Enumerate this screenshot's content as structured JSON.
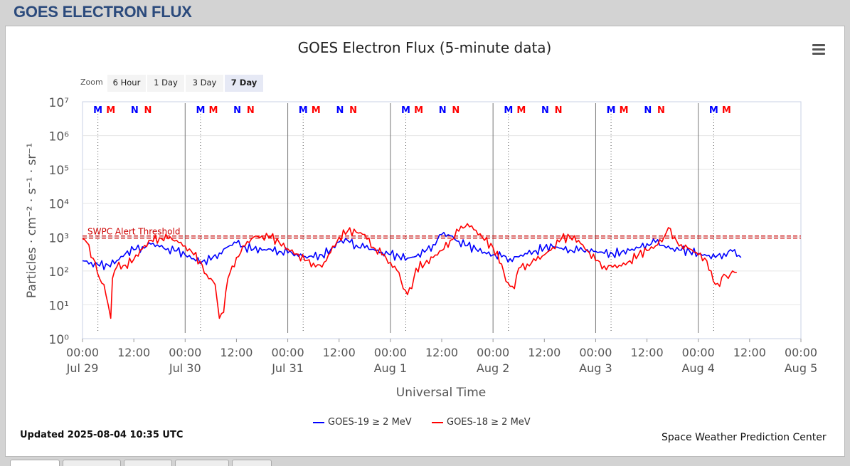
{
  "page": {
    "header": "GOES ELECTRON FLUX"
  },
  "zoom": {
    "label": "Zoom",
    "buttons": [
      "6 Hour",
      "1 Day",
      "3 Day",
      "7 Day"
    ],
    "active": "7 Day"
  },
  "footer": {
    "updated": "Updated 2025-08-04 10:35 UTC",
    "credit": "Space Weather Prediction Center"
  },
  "colors": {
    "header": "#2b4a7c",
    "goes19": "#0000ff",
    "goes18": "#ff0000",
    "threshold": "#cc0000"
  },
  "chart_data": {
    "type": "line",
    "title": "GOES Electron Flux (5-minute data)",
    "xlabel": "Universal Time",
    "ylabel": "Particles · cm⁻² · s⁻¹ · sr⁻¹",
    "y_scale": "log",
    "ylim": [
      1,
      10000000
    ],
    "y_ticks": [
      "10⁰",
      "10¹",
      "10²",
      "10³",
      "10⁴",
      "10⁵",
      "10⁶",
      "10⁷"
    ],
    "x_range_hours": [
      0,
      168
    ],
    "x_tick_labels": [
      [
        "00:00",
        "Jul 29"
      ],
      [
        "12:00",
        ""
      ],
      [
        "00:00",
        "Jul 30"
      ],
      [
        "12:00",
        ""
      ],
      [
        "00:00",
        "Jul 31"
      ],
      [
        "12:00",
        ""
      ],
      [
        "00:00",
        "Aug 1"
      ],
      [
        "12:00",
        ""
      ],
      [
        "00:00",
        "Aug 2"
      ],
      [
        "12:00",
        ""
      ],
      [
        "00:00",
        "Aug 3"
      ],
      [
        "12:00",
        ""
      ],
      [
        "00:00",
        "Aug 4"
      ],
      [
        "12:00",
        ""
      ],
      [
        "00:00",
        "Aug 5"
      ]
    ],
    "threshold": {
      "label": "SWPC Alert Threshold",
      "value": 1000
    },
    "markers": [
      {
        "t": 3.6,
        "label": "M",
        "color": "#0000ff"
      },
      {
        "t": 6.6,
        "label": "M",
        "color": "#ff0000"
      },
      {
        "t": 12.2,
        "label": "N",
        "color": "#0000ff"
      },
      {
        "t": 15.3,
        "label": "N",
        "color": "#ff0000"
      },
      {
        "t": 27.6,
        "label": "M",
        "color": "#0000ff"
      },
      {
        "t": 30.6,
        "label": "M",
        "color": "#ff0000"
      },
      {
        "t": 36.2,
        "label": "N",
        "color": "#0000ff"
      },
      {
        "t": 39.3,
        "label": "N",
        "color": "#ff0000"
      },
      {
        "t": 51.6,
        "label": "M",
        "color": "#0000ff"
      },
      {
        "t": 54.6,
        "label": "M",
        "color": "#ff0000"
      },
      {
        "t": 60.2,
        "label": "N",
        "color": "#0000ff"
      },
      {
        "t": 63.3,
        "label": "N",
        "color": "#ff0000"
      },
      {
        "t": 75.6,
        "label": "M",
        "color": "#0000ff"
      },
      {
        "t": 78.6,
        "label": "M",
        "color": "#ff0000"
      },
      {
        "t": 84.2,
        "label": "N",
        "color": "#0000ff"
      },
      {
        "t": 87.3,
        "label": "N",
        "color": "#ff0000"
      },
      {
        "t": 99.6,
        "label": "M",
        "color": "#0000ff"
      },
      {
        "t": 102.6,
        "label": "M",
        "color": "#ff0000"
      },
      {
        "t": 108.2,
        "label": "N",
        "color": "#0000ff"
      },
      {
        "t": 111.3,
        "label": "N",
        "color": "#ff0000"
      },
      {
        "t": 123.6,
        "label": "M",
        "color": "#0000ff"
      },
      {
        "t": 126.6,
        "label": "M",
        "color": "#ff0000"
      },
      {
        "t": 132.2,
        "label": "N",
        "color": "#0000ff"
      },
      {
        "t": 135.3,
        "label": "N",
        "color": "#ff0000"
      },
      {
        "t": 147.6,
        "label": "M",
        "color": "#0000ff"
      },
      {
        "t": 150.6,
        "label": "M",
        "color": "#ff0000"
      }
    ],
    "series": [
      {
        "name": "GOES-19 ≥ 2 MeV",
        "color": "#0000ff",
        "points": [
          [
            0,
            200
          ],
          [
            2,
            180
          ],
          [
            4,
            140
          ],
          [
            6,
            150
          ],
          [
            8,
            200
          ],
          [
            10,
            320
          ],
          [
            12,
            420
          ],
          [
            14,
            520
          ],
          [
            16,
            620
          ],
          [
            18,
            520
          ],
          [
            20,
            460
          ],
          [
            22,
            390
          ],
          [
            24,
            300
          ],
          [
            26,
            230
          ],
          [
            28,
            190
          ],
          [
            30,
            210
          ],
          [
            32,
            340
          ],
          [
            34,
            520
          ],
          [
            36,
            680
          ],
          [
            38,
            520
          ],
          [
            40,
            440
          ],
          [
            42,
            410
          ],
          [
            44,
            440
          ],
          [
            46,
            380
          ],
          [
            48,
            340
          ],
          [
            50,
            320
          ],
          [
            52,
            270
          ],
          [
            54,
            250
          ],
          [
            56,
            300
          ],
          [
            58,
            420
          ],
          [
            60,
            720
          ],
          [
            62,
            800
          ],
          [
            64,
            580
          ],
          [
            66,
            480
          ],
          [
            68,
            440
          ],
          [
            70,
            360
          ],
          [
            72,
            300
          ],
          [
            74,
            270
          ],
          [
            76,
            240
          ],
          [
            78,
            270
          ],
          [
            80,
            360
          ],
          [
            82,
            600
          ],
          [
            84,
            1200
          ],
          [
            86,
            1100
          ],
          [
            88,
            750
          ],
          [
            90,
            560
          ],
          [
            92,
            440
          ],
          [
            94,
            360
          ],
          [
            96,
            300
          ],
          [
            98,
            260
          ],
          [
            100,
            230
          ],
          [
            102,
            260
          ],
          [
            104,
            320
          ],
          [
            106,
            400
          ],
          [
            108,
            480
          ],
          [
            110,
            520
          ],
          [
            112,
            470
          ],
          [
            114,
            420
          ],
          [
            116,
            390
          ],
          [
            118,
            430
          ],
          [
            120,
            380
          ],
          [
            122,
            330
          ],
          [
            124,
            320
          ],
          [
            126,
            360
          ],
          [
            128,
            400
          ],
          [
            130,
            480
          ],
          [
            132,
            640
          ],
          [
            134,
            700
          ],
          [
            136,
            560
          ],
          [
            138,
            460
          ],
          [
            140,
            410
          ],
          [
            142,
            380
          ],
          [
            144,
            330
          ],
          [
            146,
            280
          ],
          [
            148,
            250
          ],
          [
            150,
            330
          ],
          [
            152,
            380
          ],
          [
            154,
            250
          ]
        ]
      },
      {
        "name": "GOES-18 ≥ 2 MeV",
        "color": "#ff0000",
        "points": [
          [
            0,
            900
          ],
          [
            1,
            700
          ],
          [
            2,
            250
          ],
          [
            3,
            180
          ],
          [
            4,
            60
          ],
          [
            5,
            40
          ],
          [
            6,
            10
          ],
          [
            6.6,
            4
          ],
          [
            7,
            60
          ],
          [
            8,
            130
          ],
          [
            10,
            150
          ],
          [
            12,
            220
          ],
          [
            14,
            450
          ],
          [
            16,
            800
          ],
          [
            18,
            950
          ],
          [
            20,
            900
          ],
          [
            22,
            800
          ],
          [
            24,
            550
          ],
          [
            26,
            300
          ],
          [
            28,
            150
          ],
          [
            29,
            80
          ],
          [
            30,
            60
          ],
          [
            31,
            40
          ],
          [
            32,
            4
          ],
          [
            33,
            6
          ],
          [
            34,
            60
          ],
          [
            35,
            140
          ],
          [
            36,
            250
          ],
          [
            38,
            550
          ],
          [
            40,
            1000
          ],
          [
            42,
            1100
          ],
          [
            44,
            1000
          ],
          [
            46,
            700
          ],
          [
            48,
            450
          ],
          [
            50,
            320
          ],
          [
            52,
            200
          ],
          [
            54,
            170
          ],
          [
            56,
            130
          ],
          [
            58,
            350
          ],
          [
            60,
            1000
          ],
          [
            62,
            1500
          ],
          [
            64,
            1400
          ],
          [
            66,
            1200
          ],
          [
            68,
            500
          ],
          [
            70,
            300
          ],
          [
            72,
            180
          ],
          [
            74,
            90
          ],
          [
            75,
            30
          ],
          [
            76,
            20
          ],
          [
            77,
            30
          ],
          [
            78,
            120
          ],
          [
            80,
            160
          ],
          [
            82,
            250
          ],
          [
            84,
            400
          ],
          [
            86,
            800
          ],
          [
            88,
            1500
          ],
          [
            90,
            2500
          ],
          [
            92,
            1600
          ],
          [
            94,
            800
          ],
          [
            96,
            500
          ],
          [
            98,
            160
          ],
          [
            99,
            50
          ],
          [
            100,
            35
          ],
          [
            101,
            30
          ],
          [
            102,
            120
          ],
          [
            104,
            160
          ],
          [
            106,
            200
          ],
          [
            108,
            300
          ],
          [
            110,
            500
          ],
          [
            112,
            900
          ],
          [
            114,
            1000
          ],
          [
            116,
            800
          ],
          [
            118,
            400
          ],
          [
            120,
            200
          ],
          [
            122,
            140
          ],
          [
            124,
            130
          ],
          [
            126,
            140
          ],
          [
            128,
            200
          ],
          [
            130,
            300
          ],
          [
            132,
            400
          ],
          [
            134,
            550
          ],
          [
            136,
            1000
          ],
          [
            137,
            1900
          ],
          [
            138,
            900
          ],
          [
            140,
            600
          ],
          [
            142,
            450
          ],
          [
            144,
            300
          ],
          [
            146,
            200
          ],
          [
            147,
            100
          ],
          [
            148,
            40
          ],
          [
            149,
            35
          ],
          [
            150,
            80
          ],
          [
            151,
            60
          ],
          [
            152,
            100
          ],
          [
            153,
            90
          ]
        ]
      }
    ]
  }
}
